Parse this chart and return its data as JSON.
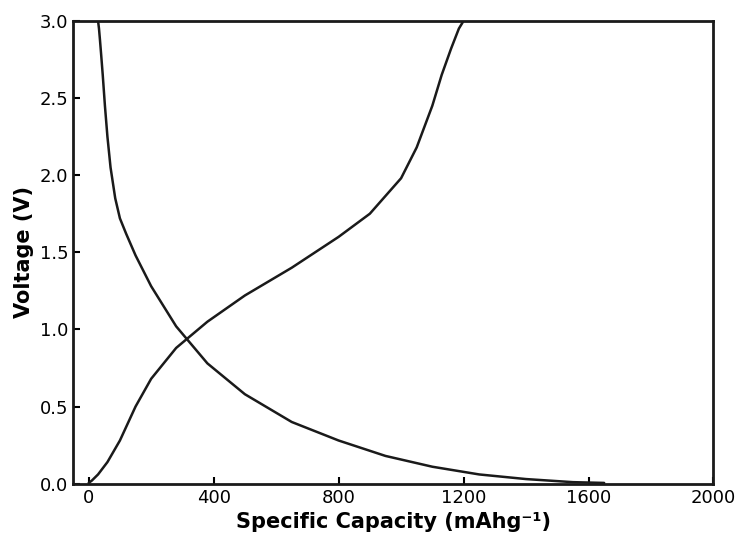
{
  "title": "",
  "xlabel": "Specific Capacity (mAhg⁻¹)",
  "ylabel": "Voltage (V)",
  "xlim": [
    -50,
    2000
  ],
  "ylim": [
    0.0,
    3.0
  ],
  "xticks": [
    0,
    400,
    800,
    1200,
    1600,
    2000
  ],
  "yticks": [
    0.0,
    0.5,
    1.0,
    1.5,
    2.0,
    2.5,
    3.0
  ],
  "line_color": "#1a1a1a",
  "line_width": 1.8,
  "background_color": "#ffffff",
  "axis_label_fontsize": 15,
  "tick_fontsize": 13,
  "figsize": [
    7.5,
    5.46
  ],
  "dpi": 100,
  "discharge_x": [
    30,
    33,
    36,
    40,
    45,
    52,
    60,
    70,
    85,
    100,
    120,
    150,
    200,
    280,
    380,
    500,
    650,
    800,
    950,
    1100,
    1250,
    1400,
    1550,
    1650
  ],
  "discharge_y": [
    3.0,
    2.95,
    2.88,
    2.78,
    2.65,
    2.45,
    2.25,
    2.05,
    1.85,
    1.72,
    1.62,
    1.48,
    1.28,
    1.02,
    0.78,
    0.58,
    0.4,
    0.28,
    0.18,
    0.11,
    0.06,
    0.03,
    0.01,
    0.005
  ],
  "charge_x": [
    0,
    10,
    30,
    60,
    100,
    150,
    200,
    280,
    380,
    500,
    650,
    800,
    900,
    1000,
    1050,
    1100,
    1130,
    1160,
    1185,
    1200
  ],
  "charge_y": [
    0.005,
    0.02,
    0.06,
    0.14,
    0.28,
    0.5,
    0.68,
    0.88,
    1.05,
    1.22,
    1.4,
    1.6,
    1.75,
    1.98,
    2.18,
    2.45,
    2.65,
    2.82,
    2.95,
    3.0
  ]
}
